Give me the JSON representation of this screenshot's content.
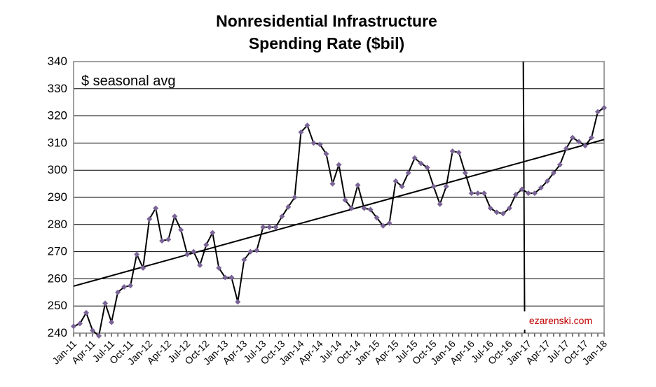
{
  "chart_data": {
    "type": "line",
    "title": [
      "Nonresidential Infrastructure",
      "Spending Rate ($bil)"
    ],
    "annotation": "$ seasonal avg",
    "watermark": "ezarenski.com",
    "xlabel": "",
    "ylabel": "",
    "ylim": [
      240,
      340
    ],
    "yticks": [
      240,
      250,
      260,
      270,
      280,
      290,
      300,
      310,
      320,
      330,
      340
    ],
    "grid": true,
    "x_tick_labels": [
      "Jan-11",
      "Apr-11",
      "Jul-11",
      "Oct-11",
      "Jan-12",
      "Apr-12",
      "Jul-12",
      "Oct-12",
      "Jan-13",
      "Apr-13",
      "Jul-13",
      "Oct-13",
      "Jan-14",
      "Apr-14",
      "Jul-14",
      "Oct-14",
      "Jan-15",
      "Apr-15",
      "Jul-15",
      "Oct-15",
      "Jan-16",
      "Apr-16",
      "Jul-16",
      "Oct-16",
      "Jan-17",
      "Apr-17",
      "Jul-17",
      "Oct-17",
      "Jan-18"
    ],
    "x_start": "Jan-11",
    "x_end": "Jan-18",
    "series": [
      {
        "values": [
          242.5,
          243.5,
          247.5,
          241,
          239,
          251,
          244,
          255,
          257,
          257.5,
          269,
          264,
          282,
          286,
          274,
          274.5,
          283,
          278,
          269,
          270,
          265,
          272.5,
          277,
          264,
          260.5,
          260.5,
          251.5,
          267,
          270,
          270.5,
          279,
          279,
          279,
          283,
          286.5,
          290,
          314,
          316.5,
          310,
          309.5,
          306,
          295,
          302,
          289,
          286,
          294.5,
          286,
          285.5,
          282.5,
          279.5,
          280.5,
          296,
          294,
          299,
          304.5,
          302.5,
          301,
          294,
          287.5,
          294,
          307,
          306.5,
          299,
          291.5,
          291.5,
          291.5,
          286,
          284.5,
          284,
          286,
          291,
          293,
          291.5,
          291.5,
          293.5,
          296,
          299,
          302,
          308,
          312,
          310.5,
          309,
          312,
          321.5,
          323
        ],
        "color": "#000000",
        "marker_color": "#7a6496"
      }
    ],
    "trendline": {
      "start": 257.3,
      "end": 311.3,
      "color": "#000000"
    },
    "vertical_marker": {
      "between": [
        "Dec-16",
        "Jan-17"
      ]
    },
    "colors": {
      "watermark": "#c00000",
      "grid": "#000000"
    }
  }
}
